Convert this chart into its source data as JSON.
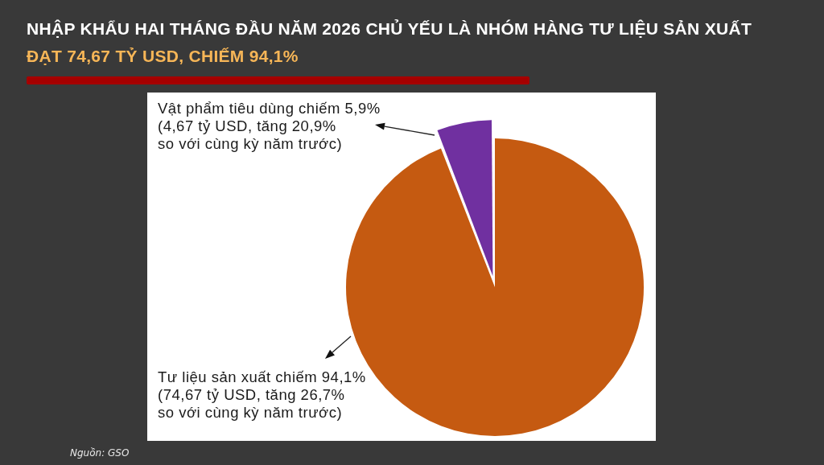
{
  "chart_data": {
    "type": "pie",
    "title": "NHẬP KHẨU HAI THÁNG ĐẦU NĂM 2026 CHỦ YẾU LÀ NHÓM HÀNG TƯ LIỆU SẢN XUẤT",
    "subtitle": "ĐẠT 74,67 TỶ USD, CHIẾM 94,1%",
    "categories": [
      "Tư liệu sản xuất chiếm 94,1%\n(74,67 tỷ USD, tăng 26,7%\nso với cùng kỳ năm trước)",
      "Vật phẩm tiêu dùng chiếm 5,9%\n(4,67 tỷ USD, tăng 20,9%\nso với cùng kỳ năm trước)"
    ],
    "values": [
      94.1,
      5.9
    ],
    "colors": [
      "#c55a11",
      "#7030a0"
    ],
    "annotations": [
      "Nguồn: GSO"
    ]
  }
}
